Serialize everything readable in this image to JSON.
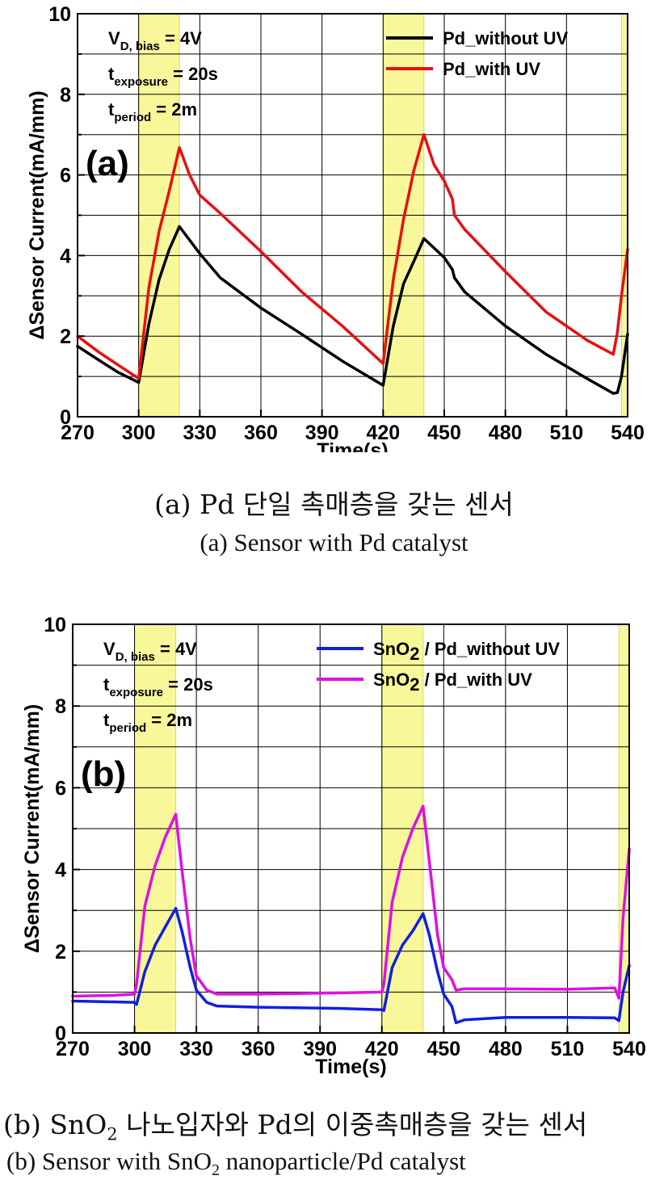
{
  "chart_data": [
    {
      "type": "line",
      "panel_label": "(a)",
      "xlabel": "Time(s)",
      "ylabel": "ΔSensor Current(mA/mm)",
      "xlim": [
        270,
        540
      ],
      "ylim": [
        0,
        10
      ],
      "xticks": [
        270,
        300,
        330,
        360,
        390,
        420,
        450,
        480,
        510,
        540
      ],
      "yticks": [
        0,
        2,
        4,
        6,
        8,
        10
      ],
      "grid": true,
      "legend_position": "top-right",
      "uv_bands": [
        [
          300,
          320
        ],
        [
          420,
          440
        ],
        [
          537,
          540
        ]
      ],
      "conditions": [
        {
          "base": "V",
          "sub": "D, bias",
          "value": "= 4V"
        },
        {
          "base": "t",
          "sub": "exposure",
          "value": "= 20s"
        },
        {
          "base": "t",
          "sub": "period",
          "value": "= 2m"
        }
      ],
      "series": [
        {
          "name": "Pd_without UV",
          "color": "#000000",
          "x": [
            270,
            280,
            290,
            300,
            305,
            310,
            315,
            320,
            330,
            340,
            360,
            380,
            400,
            420,
            425,
            430,
            435,
            440,
            450,
            454,
            455,
            460,
            480,
            500,
            520,
            533,
            535,
            537,
            540
          ],
          "y": [
            1.75,
            1.42,
            1.1,
            0.85,
            2.3,
            3.4,
            4.15,
            4.72,
            4.05,
            3.45,
            2.7,
            2.05,
            1.38,
            0.78,
            2.25,
            3.3,
            3.85,
            4.42,
            3.95,
            3.65,
            3.45,
            3.1,
            2.25,
            1.55,
            0.95,
            0.58,
            0.6,
            1.0,
            2.05
          ]
        },
        {
          "name": "Pd_with UV",
          "color": "#e81010",
          "x": [
            270,
            280,
            290,
            300,
            305,
            310,
            315,
            320,
            325,
            330,
            340,
            360,
            380,
            400,
            420,
            425,
            430,
            435,
            440,
            445,
            450,
            454,
            455,
            460,
            480,
            500,
            520,
            533,
            535,
            537,
            540
          ],
          "y": [
            2.0,
            1.62,
            1.28,
            0.95,
            3.2,
            4.6,
            5.6,
            6.68,
            6.0,
            5.5,
            5.05,
            4.1,
            3.1,
            2.25,
            1.32,
            3.4,
            4.9,
            6.1,
            7.0,
            6.25,
            5.85,
            5.4,
            5.0,
            4.65,
            3.6,
            2.6,
            1.9,
            1.55,
            2.1,
            3.0,
            4.15
          ]
        }
      ]
    },
    {
      "type": "line",
      "panel_label": "(b)",
      "xlabel": "Time(s)",
      "ylabel": "ΔSensor Current(mA/mm)",
      "xlim": [
        270,
        540
      ],
      "ylim": [
        0,
        10
      ],
      "xticks": [
        270,
        300,
        330,
        360,
        390,
        420,
        450,
        480,
        510,
        540
      ],
      "yticks": [
        0,
        2,
        4,
        6,
        8,
        10
      ],
      "grid": true,
      "legend_position": "top-right",
      "uv_bands": [
        [
          300,
          320
        ],
        [
          420,
          440
        ],
        [
          535,
          540
        ]
      ],
      "conditions": [
        {
          "base": "V",
          "sub": "D, bias",
          "value": "= 4V"
        },
        {
          "base": "t",
          "sub": "exposure",
          "value": "= 20s"
        },
        {
          "base": "t",
          "sub": "period",
          "value": "= 2m"
        }
      ],
      "series": [
        {
          "name": "SnO2 / Pd_without UV",
          "name_parts": [
            "SnO",
            "2",
            " / Pd_without UV"
          ],
          "color": "#1020e0",
          "x": [
            270,
            290,
            300,
            301,
            305,
            310,
            315,
            320,
            323,
            327,
            330,
            335,
            340,
            360,
            400,
            420,
            421,
            425,
            430,
            435,
            440,
            443,
            447,
            450,
            454,
            456,
            460,
            480,
            510,
            533,
            535,
            537,
            540
          ],
          "y": [
            0.78,
            0.76,
            0.75,
            0.7,
            1.5,
            2.15,
            2.6,
            3.05,
            2.5,
            1.6,
            1.05,
            0.75,
            0.66,
            0.63,
            0.6,
            0.57,
            0.55,
            1.6,
            2.15,
            2.5,
            2.92,
            2.4,
            1.5,
            0.95,
            0.65,
            0.25,
            0.32,
            0.38,
            0.38,
            0.37,
            0.3,
            1.0,
            1.65
          ]
        },
        {
          "name": "SnO2 / Pd_with UV",
          "name_parts": [
            "SnO",
            "2",
            " / Pd_with UV"
          ],
          "color": "#e010e0",
          "x": [
            270,
            290,
            300,
            301,
            305,
            310,
            315,
            320,
            323,
            327,
            330,
            335,
            340,
            360,
            400,
            420,
            421,
            425,
            430,
            435,
            440,
            443,
            447,
            450,
            454,
            456,
            460,
            480,
            510,
            533,
            535,
            537,
            540
          ],
          "y": [
            0.9,
            0.92,
            0.95,
            1.2,
            3.1,
            4.1,
            4.8,
            5.35,
            4.0,
            2.3,
            1.4,
            1.05,
            0.95,
            0.95,
            0.98,
            1.0,
            1.2,
            3.2,
            4.3,
            5.0,
            5.55,
            4.2,
            2.4,
            1.6,
            1.3,
            1.05,
            1.08,
            1.08,
            1.07,
            1.1,
            0.85,
            2.8,
            4.5
          ]
        }
      ]
    }
  ],
  "captions": {
    "a_korean": "(a) Pd 단일 촉매층을 갖는 센서",
    "a_english": "(a) Sensor with Pd catalyst",
    "b_korean_prefix": "(b) SnO",
    "b_korean_sub": "2",
    "b_korean_suffix": " 나노입자와 Pd의 이중촉매층을 갖는 센서",
    "b_english_prefix": "(b) Sensor with SnO",
    "b_english_sub": "2",
    "b_english_suffix": " nanoparticle/Pd catalyst"
  },
  "colors": {
    "uv_band": "#f8f79a",
    "uv_band_edge": "#d8d860",
    "grid": "#000000"
  }
}
